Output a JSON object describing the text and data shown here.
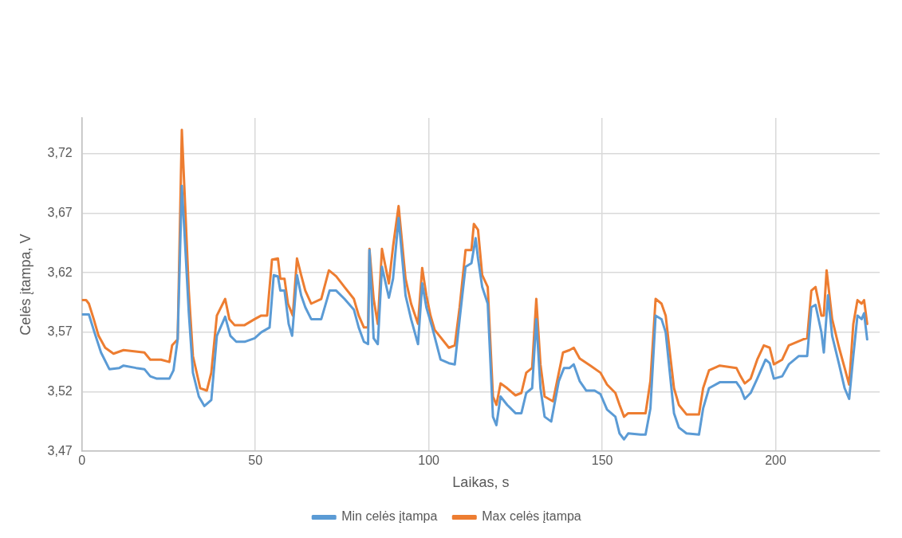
{
  "chart_data": {
    "type": "line",
    "xlabel": "Laikas, s",
    "ylabel": "Celės įtampa, V",
    "xlim": [
      0,
      230
    ],
    "xticks": [
      0,
      50,
      100,
      150,
      200
    ],
    "ylim": [
      3.47,
      3.75
    ],
    "yticks": [
      {
        "value": 3.47,
        "label": "3,47"
      },
      {
        "value": 3.52,
        "label": "3,52"
      },
      {
        "value": 3.57,
        "label": "3,57"
      },
      {
        "value": 3.62,
        "label": "3,62"
      },
      {
        "value": 3.67,
        "label": "3,67"
      },
      {
        "value": 3.72,
        "label": "3,72"
      }
    ],
    "grid": true,
    "legend": "bottom",
    "marker": "none",
    "line_style": "solid",
    "series": [
      {
        "name": "Min celės įtampa",
        "color": "#5b9bd5",
        "x": [
          0,
          2,
          3.6,
          5.5,
          7.9,
          10.8,
          12,
          15.6,
          18,
          19.7,
          21.6,
          25.2,
          26.4,
          27.6,
          28.8,
          29.6,
          30.8,
          32,
          33.7,
          35.3,
          37.3,
          38.9,
          41.3,
          42.8,
          44.5,
          46.9,
          49.8,
          51.7,
          54.1,
          55.3,
          56.5,
          57.2,
          58.4,
          59.6,
          60.6,
          62,
          63.2,
          64.4,
          66.1,
          69,
          71.4,
          73.3,
          75.7,
          78.4,
          79.8,
          81.3,
          82.5,
          82.9,
          84.1,
          85.3,
          86.5,
          88.5,
          89.7,
          91.3,
          93.3,
          94.9,
          96.9,
          98.1,
          99.3,
          101,
          103.4,
          105.8,
          107.5,
          108.9,
          110.6,
          112.3,
          113.5,
          114.2,
          115.4,
          117,
          118.5,
          119.5,
          120.7,
          122.6,
          125,
          126.7,
          128.1,
          129.8,
          131,
          132.2,
          133.4,
          135.3,
          137.5,
          139,
          140.6,
          141.8,
          143.5,
          145.4,
          147.8,
          149.5,
          151.4,
          153.8,
          155,
          156.3,
          157.5,
          161.1,
          162.5,
          163.9,
          165.4,
          167.1,
          168.3,
          169.5,
          170.7,
          172.1,
          174.3,
          177.9,
          179.1,
          180.8,
          183.9,
          188.7,
          189.9,
          191.1,
          192.8,
          194.7,
          197.1,
          198.3,
          199.5,
          201.9,
          203.8,
          206.7,
          209.1,
          210.3,
          211.5,
          213.2,
          213.9,
          215.1,
          216.3,
          218.3,
          219.9,
          221.2,
          222.4,
          223.6,
          224.8,
          225.5,
          226.4
        ],
        "values": [
          3.585,
          3.585,
          3.57,
          3.553,
          3.539,
          3.54,
          3.542,
          3.54,
          3.539,
          3.533,
          3.531,
          3.531,
          3.538,
          3.564,
          3.693,
          3.652,
          3.587,
          3.536,
          3.516,
          3.508,
          3.513,
          3.567,
          3.583,
          3.567,
          3.562,
          3.562,
          3.565,
          3.57,
          3.574,
          3.618,
          3.617,
          3.605,
          3.605,
          3.577,
          3.567,
          3.618,
          3.601,
          3.591,
          3.581,
          3.581,
          3.605,
          3.605,
          3.598,
          3.589,
          3.574,
          3.562,
          3.56,
          3.639,
          3.565,
          3.56,
          3.625,
          3.599,
          3.615,
          3.666,
          3.601,
          3.581,
          3.56,
          3.611,
          3.591,
          3.574,
          3.547,
          3.544,
          3.543,
          3.581,
          3.625,
          3.628,
          3.649,
          3.632,
          3.608,
          3.594,
          3.499,
          3.492,
          3.516,
          3.509,
          3.502,
          3.502,
          3.519,
          3.523,
          3.581,
          3.523,
          3.499,
          3.495,
          3.529,
          3.54,
          3.54,
          3.543,
          3.529,
          3.521,
          3.521,
          3.518,
          3.505,
          3.499,
          3.485,
          3.48,
          3.485,
          3.484,
          3.484,
          3.506,
          3.584,
          3.581,
          3.57,
          3.536,
          3.502,
          3.49,
          3.485,
          3.484,
          3.506,
          3.523,
          3.528,
          3.528,
          3.523,
          3.514,
          3.519,
          3.531,
          3.547,
          3.544,
          3.531,
          3.533,
          3.543,
          3.55,
          3.55,
          3.591,
          3.593,
          3.57,
          3.553,
          3.601,
          3.567,
          3.543,
          3.523,
          3.514,
          3.55,
          3.584,
          3.581,
          3.586,
          3.564
        ]
      },
      {
        "name": "Max celės įtampa",
        "color": "#ed7d31",
        "x": [
          0,
          1.2,
          2,
          3.4,
          4.8,
          6.7,
          9.1,
          12,
          18,
          19.7,
          22.8,
          25.2,
          26,
          27.6,
          28.8,
          29.6,
          30.8,
          32,
          34.1,
          36,
          37.3,
          38.9,
          41.3,
          42.5,
          44,
          46.9,
          49.8,
          51.7,
          53.4,
          54.8,
          56.5,
          57.2,
          58.4,
          59.4,
          60.8,
          62,
          63.2,
          64.4,
          66.1,
          69,
          71.2,
          73.3,
          75.7,
          78.4,
          79.8,
          81.3,
          82.5,
          82.9,
          84.1,
          85.3,
          86.5,
          88.5,
          89.7,
          91.3,
          93.3,
          94.9,
          96.9,
          98.1,
          99.3,
          100.5,
          101.7,
          105.8,
          107.5,
          108.9,
          110.6,
          112.3,
          113,
          114.2,
          115.4,
          117,
          118.5,
          119.5,
          120.7,
          122.6,
          125,
          126.7,
          128.1,
          129.8,
          131,
          132.2,
          133.4,
          135.8,
          137.5,
          138.7,
          140.6,
          141.8,
          143.5,
          146.6,
          149.5,
          151.4,
          153.8,
          155,
          156.3,
          157.5,
          159.1,
          162.5,
          163.9,
          165.4,
          167.1,
          168.3,
          169.5,
          170.7,
          172.1,
          174.3,
          177.9,
          179.1,
          180.8,
          183.9,
          188.7,
          189.9,
          191.1,
          192.8,
          194.7,
          196.6,
          198.3,
          199.5,
          201.9,
          203.8,
          207.9,
          209.1,
          210.3,
          211.5,
          213.2,
          213.9,
          214.7,
          216.3,
          218.3,
          219.9,
          221.2,
          222.4,
          223.6,
          224.8,
          225.5,
          226.4
        ],
        "values": [
          3.597,
          3.597,
          3.594,
          3.581,
          3.567,
          3.557,
          3.552,
          3.555,
          3.553,
          3.547,
          3.547,
          3.545,
          3.559,
          3.564,
          3.74,
          3.687,
          3.605,
          3.55,
          3.523,
          3.521,
          3.536,
          3.584,
          3.598,
          3.581,
          3.576,
          3.576,
          3.581,
          3.584,
          3.584,
          3.631,
          3.632,
          3.615,
          3.615,
          3.594,
          3.584,
          3.632,
          3.618,
          3.605,
          3.594,
          3.598,
          3.622,
          3.617,
          3.608,
          3.598,
          3.584,
          3.574,
          3.574,
          3.64,
          3.598,
          3.577,
          3.64,
          3.611,
          3.642,
          3.676,
          3.615,
          3.594,
          3.577,
          3.624,
          3.601,
          3.584,
          3.572,
          3.557,
          3.559,
          3.591,
          3.639,
          3.639,
          3.661,
          3.656,
          3.618,
          3.608,
          3.516,
          3.509,
          3.527,
          3.523,
          3.517,
          3.519,
          3.536,
          3.54,
          3.598,
          3.543,
          3.516,
          3.512,
          3.536,
          3.553,
          3.555,
          3.557,
          3.548,
          3.542,
          3.536,
          3.526,
          3.519,
          3.509,
          3.499,
          3.502,
          3.502,
          3.502,
          3.529,
          3.598,
          3.594,
          3.584,
          3.553,
          3.523,
          3.509,
          3.501,
          3.501,
          3.523,
          3.538,
          3.542,
          3.54,
          3.533,
          3.527,
          3.531,
          3.547,
          3.559,
          3.557,
          3.543,
          3.547,
          3.559,
          3.564,
          3.565,
          3.605,
          3.608,
          3.584,
          3.584,
          3.622,
          3.581,
          3.557,
          3.54,
          3.526,
          3.577,
          3.597,
          3.594,
          3.597,
          3.577
        ]
      }
    ]
  }
}
